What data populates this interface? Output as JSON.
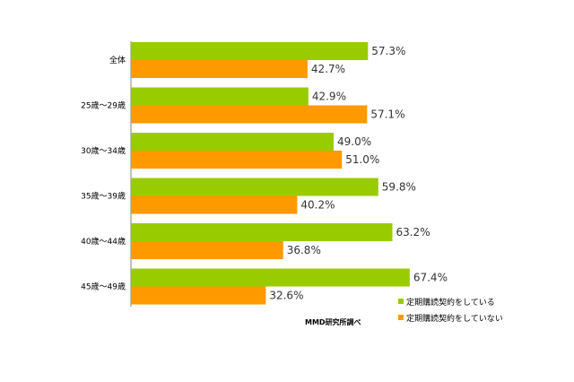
{
  "chart_data": {
    "type": "bar",
    "orientation": "horizontal",
    "categories": [
      "全体",
      "25歳～29歳",
      "30歳～34歳",
      "35歳～39歳",
      "40歳～44歳",
      "45歳～49歳"
    ],
    "series": [
      {
        "name": "定期購読契約をしている",
        "color": "#99cc00",
        "values": [
          57.3,
          42.9,
          49.0,
          59.8,
          63.2,
          67.4
        ],
        "labels": [
          "57.3%",
          "42.9%",
          "49.0%",
          "59.8%",
          "63.2%",
          "67.4%"
        ]
      },
      {
        "name": "定期購読契約をしていない",
        "color": "#ff9900",
        "values": [
          42.7,
          57.1,
          51.0,
          40.2,
          36.8,
          32.6
        ],
        "labels": [
          "42.7%",
          "57.1%",
          "51.0%",
          "40.2%",
          "36.8%",
          "32.6%"
        ]
      }
    ],
    "xlim": [
      0,
      100
    ],
    "grid": false,
    "legend_position": "bottom-right",
    "source": "MMD研究所調べ"
  }
}
